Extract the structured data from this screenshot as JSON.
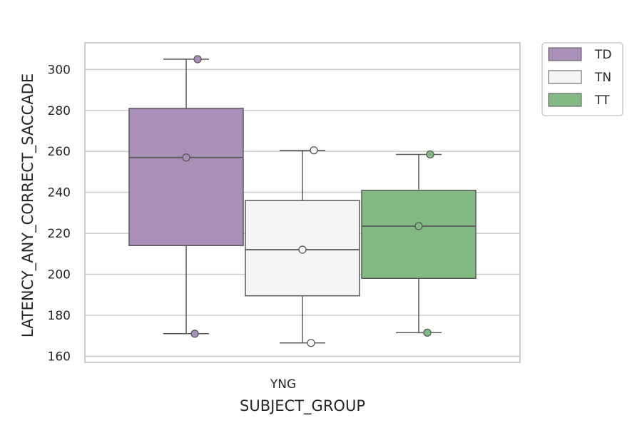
{
  "chart_data": {
    "type": "box",
    "xlabel": "SUBJECT_GROUP",
    "ylabel": "LATENCY_ANY_CORRECT_SACCADE",
    "categories": [
      "YNG"
    ],
    "ylim": [
      157,
      313
    ],
    "yticks": [
      160,
      180,
      200,
      220,
      240,
      260,
      280,
      300
    ],
    "grid": true,
    "legend": {
      "placement": "outside-top-right",
      "entries": [
        "TD",
        "TN",
        "TT"
      ]
    },
    "series": [
      {
        "name": "TD",
        "color": "#a990b9",
        "point_color": "#a990b9",
        "whisker_low": 171,
        "q1": 214,
        "median": 257,
        "q3": 281,
        "whisker_high": 305,
        "mean": 257,
        "min_marker": 171,
        "max_marker": 305
      },
      {
        "name": "TN",
        "color": "#f5f5f5",
        "point_color": "#ffffff",
        "whisker_low": 166.5,
        "q1": 189.5,
        "median": 212,
        "q3": 236,
        "whisker_high": 260.5,
        "mean": 212,
        "min_marker": 166.5,
        "max_marker": 260.5
      },
      {
        "name": "TT",
        "color": "#83ba83",
        "point_color": "#83ba83",
        "whisker_low": 171.5,
        "q1": 198,
        "median": 223.5,
        "q3": 241,
        "whisker_high": 258.5,
        "mean": 223.5,
        "min_marker": 171.5,
        "max_marker": 258.5
      }
    ]
  }
}
